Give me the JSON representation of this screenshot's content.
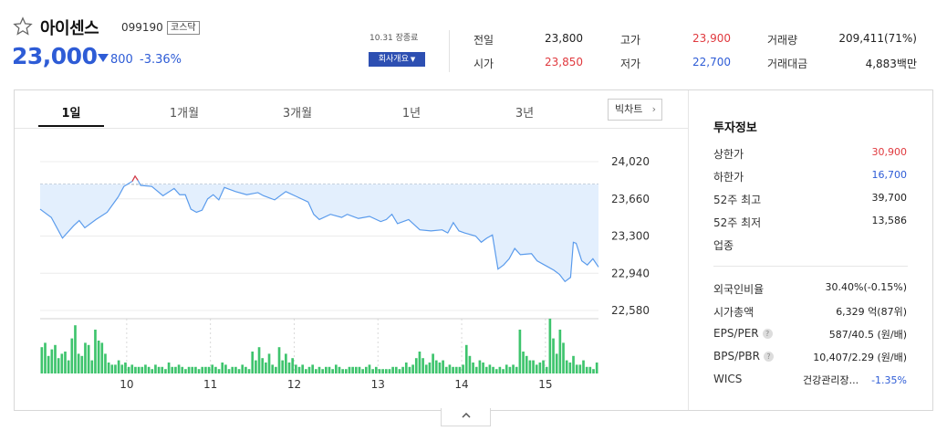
{
  "stock": {
    "name": "아이센스",
    "code": "099190",
    "market": "코스닥",
    "price": "23,000",
    "change_abs": "800",
    "change_pct": "-3.36%",
    "direction": "down"
  },
  "session": {
    "date_status": "10.31 장종료",
    "company_button": "회사개요"
  },
  "quotes": {
    "prev_close_label": "전일",
    "prev_close": "23,800",
    "open_label": "시가",
    "open": "23,850",
    "high_label": "고가",
    "high": "23,900",
    "low_label": "저가",
    "low": "22,700",
    "volume_label": "거래량",
    "volume": "209,411(71%)",
    "amount_label": "거래대금",
    "amount": "4,883백만"
  },
  "tabs": [
    "1일",
    "1개월",
    "3개월",
    "1년",
    "3년"
  ],
  "active_tab": "1일",
  "bigchart_label": "빅차트",
  "invest": {
    "title": "투자정보",
    "upper_limit_label": "상한가",
    "upper_limit": "30,900",
    "lower_limit_label": "하한가",
    "lower_limit": "16,700",
    "w52_high_label": "52주 최고",
    "w52_high": "39,700",
    "w52_low_label": "52주 최저",
    "w52_low": "13,586",
    "industry_label": "업종",
    "foreign_label": "외국인비율",
    "foreign": "30.40%(-0.15%)",
    "mcap_label": "시가총액",
    "mcap": "6,329 억(87위)",
    "eps_label": "EPS/PER",
    "eps": "587/40.5 (원/배)",
    "bps_label": "BPS/PBR",
    "bps": "10,407/2.29 (원/배)",
    "wics_label": "WICS",
    "wics": "건강관리장...",
    "wics_pct": "-1.35%"
  },
  "colors": {
    "accent_blue": "#2e5cd6",
    "up_red": "#e0393e",
    "volume_green": "#3ec46d",
    "area_fill": "#e3effd"
  },
  "chart_data": {
    "type": "area",
    "prev_close": 23800,
    "ylim": [
      22580,
      24200
    ],
    "yticks": [
      "24,020",
      "23,660",
      "23,300",
      "22,940",
      "22,580"
    ],
    "ytick_values": [
      24020,
      23660,
      23300,
      22940,
      22580
    ],
    "xticks": [
      "10",
      "11",
      "12",
      "13",
      "14",
      "15"
    ],
    "x_range": [
      "09:00",
      "15:30"
    ],
    "price_series": [
      [
        0.0,
        23560
      ],
      [
        0.02,
        23480
      ],
      [
        0.04,
        23280
      ],
      [
        0.06,
        23400
      ],
      [
        0.07,
        23450
      ],
      [
        0.08,
        23380
      ],
      [
        0.1,
        23460
      ],
      [
        0.12,
        23530
      ],
      [
        0.14,
        23680
      ],
      [
        0.15,
        23780
      ],
      [
        0.165,
        23830
      ],
      [
        0.17,
        23880
      ],
      [
        0.175,
        23840
      ],
      [
        0.18,
        23790
      ],
      [
        0.2,
        23780
      ],
      [
        0.22,
        23690
      ],
      [
        0.24,
        23760
      ],
      [
        0.25,
        23700
      ],
      [
        0.26,
        23700
      ],
      [
        0.27,
        23560
      ],
      [
        0.28,
        23530
      ],
      [
        0.29,
        23550
      ],
      [
        0.3,
        23660
      ],
      [
        0.31,
        23700
      ],
      [
        0.32,
        23650
      ],
      [
        0.33,
        23770
      ],
      [
        0.35,
        23730
      ],
      [
        0.37,
        23700
      ],
      [
        0.39,
        23720
      ],
      [
        0.4,
        23690
      ],
      [
        0.42,
        23650
      ],
      [
        0.44,
        23730
      ],
      [
        0.46,
        23680
      ],
      [
        0.48,
        23630
      ],
      [
        0.49,
        23510
      ],
      [
        0.5,
        23460
      ],
      [
        0.52,
        23510
      ],
      [
        0.54,
        23480
      ],
      [
        0.55,
        23510
      ],
      [
        0.57,
        23470
      ],
      [
        0.59,
        23490
      ],
      [
        0.61,
        23440
      ],
      [
        0.62,
        23460
      ],
      [
        0.63,
        23510
      ],
      [
        0.64,
        23420
      ],
      [
        0.66,
        23460
      ],
      [
        0.68,
        23360
      ],
      [
        0.7,
        23350
      ],
      [
        0.72,
        23360
      ],
      [
        0.73,
        23330
      ],
      [
        0.74,
        23430
      ],
      [
        0.75,
        23350
      ],
      [
        0.76,
        23330
      ],
      [
        0.78,
        23300
      ],
      [
        0.79,
        23240
      ],
      [
        0.8,
        23280
      ],
      [
        0.81,
        23310
      ],
      [
        0.82,
        22980
      ],
      [
        0.83,
        23020
      ],
      [
        0.84,
        23080
      ],
      [
        0.85,
        23180
      ],
      [
        0.86,
        23120
      ],
      [
        0.88,
        23130
      ],
      [
        0.89,
        23060
      ],
      [
        0.9,
        23030
      ],
      [
        0.91,
        23000
      ],
      [
        0.92,
        22970
      ],
      [
        0.93,
        22930
      ],
      [
        0.94,
        22860
      ],
      [
        0.95,
        22900
      ],
      [
        0.955,
        23240
      ],
      [
        0.96,
        23230
      ],
      [
        0.97,
        23060
      ],
      [
        0.98,
        23020
      ],
      [
        0.99,
        23080
      ],
      [
        1.0,
        23000
      ]
    ],
    "volume_series": [
      12,
      14,
      8,
      11,
      13,
      7,
      9,
      10,
      6,
      16,
      22,
      9,
      8,
      14,
      13,
      6,
      20,
      15,
      14,
      9,
      5,
      4,
      4,
      6,
      4,
      5,
      3,
      4,
      3,
      3,
      3,
      4,
      3,
      2,
      4,
      3,
      3,
      2,
      5,
      3,
      3,
      4,
      3,
      2,
      3,
      3,
      3,
      2,
      3,
      3,
      3,
      4,
      3,
      2,
      5,
      4,
      2,
      3,
      3,
      2,
      4,
      3,
      2,
      10,
      6,
      12,
      7,
      5,
      9,
      4,
      3,
      12,
      6,
      9,
      5,
      7,
      4,
      3,
      4,
      2,
      3,
      4,
      2,
      3,
      2,
      3,
      3,
      2,
      4,
      3,
      2,
      2,
      3,
      3,
      3,
      3,
      2,
      3,
      4,
      2,
      3,
      2,
      2,
      2,
      2,
      3,
      3,
      2,
      3,
      5,
      3,
      4,
      7,
      10,
      7,
      4,
      5,
      9,
      6,
      5,
      6,
      3,
      4,
      3,
      3,
      3,
      4,
      13,
      8,
      5,
      3,
      6,
      5,
      3,
      4,
      3,
      2,
      3,
      2,
      4,
      3,
      4,
      3,
      20,
      10,
      8,
      6,
      6,
      4,
      5,
      6,
      3,
      25,
      16,
      9,
      20,
      14,
      6,
      5,
      8,
      4,
      4,
      6,
      3,
      3,
      2,
      5
    ]
  }
}
